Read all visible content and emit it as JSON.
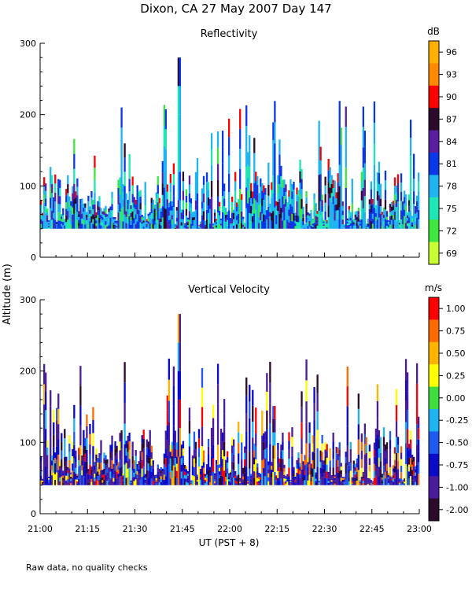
{
  "figure_title": "Dixon, CA 27 May 2007  Day 147",
  "ylabel": "Altitude (m)",
  "xlabel": "UT  (PST + 8)",
  "footnote": "Raw data, no quality checks",
  "chart_data": [
    {
      "type": "heatmap",
      "title": "Reflectivity",
      "xlabel": "UT  (PST + 8)",
      "ylabel": "Altitude (m)",
      "x_ticks": [
        "21:00",
        "21:15",
        "21:30",
        "21:45",
        "22:00",
        "22:15",
        "22:30",
        "22:45",
        "23:00"
      ],
      "y_ticks": [
        0,
        100,
        200,
        300
      ],
      "xlim_minutes_after_2100": [
        0,
        120
      ],
      "ylim": [
        0,
        300
      ],
      "data_altitude_range": [
        40,
        280
      ],
      "colorbar": {
        "unit": "dB",
        "labels": [
          "96",
          "93",
          "90",
          "87",
          "84",
          "81",
          "78",
          "75",
          "72",
          "69"
        ],
        "colors": [
          "#ffb000",
          "#ff8a00",
          "#ff0000",
          "#2b0a2b",
          "#5a1f9e",
          "#0a38e8",
          "#1eb4f0",
          "#1ee6b4",
          "#3ee63e",
          "#c8ff32"
        ]
      },
      "features": {
        "main_layer_top_typical": 100,
        "tallest_echo": 280,
        "tallest_echo_time": "21:44"
      }
    },
    {
      "type": "heatmap",
      "title": "Vertical Velocity",
      "xlabel": "UT  (PST + 8)",
      "ylabel": "Altitude (m)",
      "x_ticks": [
        "21:00",
        "21:15",
        "21:30",
        "21:45",
        "22:00",
        "22:15",
        "22:30",
        "22:45",
        "23:00"
      ],
      "y_ticks": [
        0,
        100,
        200,
        300
      ],
      "xlim_minutes_after_2100": [
        0,
        120
      ],
      "ylim": [
        0,
        300
      ],
      "data_altitude_range": [
        40,
        280
      ],
      "colorbar": {
        "unit": "m/s",
        "labels": [
          "1.00",
          "0.75",
          "0.50",
          "0.25",
          "0.00",
          "-0.25",
          "-0.50",
          "-0.75",
          "-1.00",
          "-2.00"
        ],
        "colors": [
          "#ff0000",
          "#ff6a00",
          "#ffb400",
          "#ffff00",
          "#3ede3e",
          "#1eb4f0",
          "#1e5af0",
          "#0a0ac8",
          "#4a1c9c",
          "#2b0a2b"
        ]
      },
      "features": {
        "main_layer_top_typical": 100,
        "tallest_echo": 280,
        "tallest_echo_time": "21:44"
      }
    }
  ]
}
